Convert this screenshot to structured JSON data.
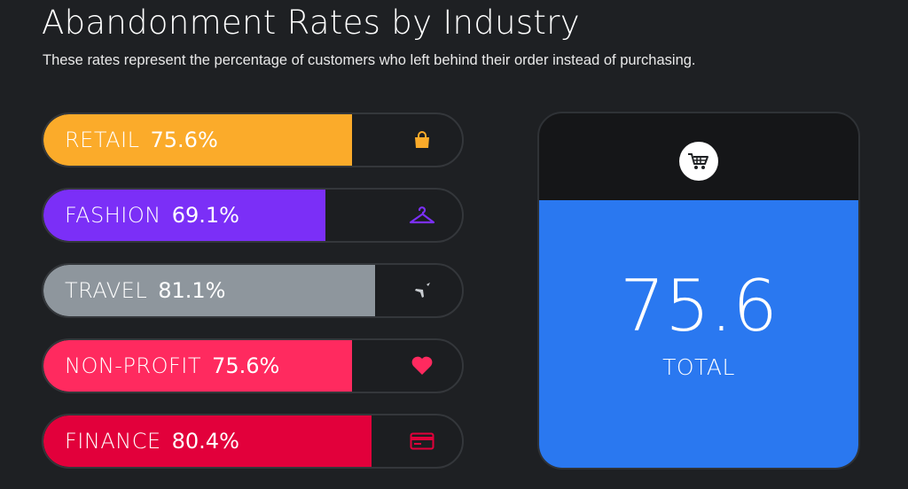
{
  "header": {
    "title": "Abandonment Rates by Industry",
    "subtitle": "These rates represent the percentage of customers who left behind their order instead of purchasing."
  },
  "chart_data": {
    "type": "bar",
    "title": "Abandonment Rates by Industry",
    "subtitle": "These rates represent the percentage of customers who left behind their order instead of purchasing.",
    "categories": [
      "RETAIL",
      "FASHION",
      "TRAVEL",
      "NON-PROFIT",
      "FINANCE"
    ],
    "values": [
      75.6,
      69.1,
      81.1,
      75.6,
      80.4
    ],
    "value_labels": [
      "75.6%",
      "69.1%",
      "81.1%",
      "75.6%",
      "80.4%"
    ],
    "colors": [
      "#fbab2a",
      "#7b2ff7",
      "#8e969d",
      "#ff2a5f",
      "#e2003b"
    ],
    "icons": [
      "shopping-bag-icon",
      "hanger-icon",
      "airplane-icon",
      "heart-icon",
      "credit-card-icon"
    ],
    "ylim": [
      0,
      100
    ],
    "orientation": "horizontal",
    "legend": "none",
    "grid": false
  },
  "total": {
    "value": "75.6",
    "label": "TOTAL",
    "icon": "shopping-cart-icon",
    "fill_fraction": 0.756,
    "color": "#2a78f0"
  }
}
